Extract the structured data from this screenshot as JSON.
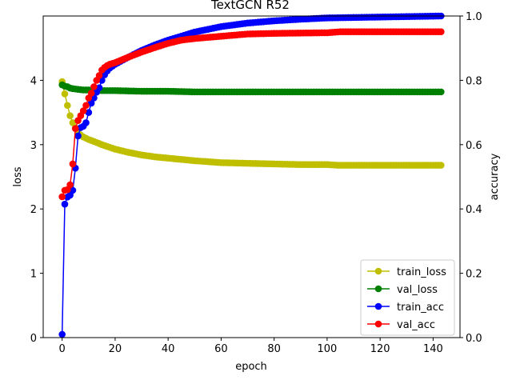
{
  "chart_data": {
    "type": "line",
    "title": "TextGCN R52",
    "xlabel": "epoch",
    "ylabel": "loss",
    "ylabel_right": "accuracy",
    "xlim": [
      -7.15,
      150.15
    ],
    "ylim": [
      0,
      5
    ],
    "ylim_right": [
      0,
      1
    ],
    "xticks": [
      "0",
      "20",
      "40",
      "60",
      "80",
      "100",
      "120",
      "140"
    ],
    "yticks_left": [
      "0",
      "1",
      "2",
      "3",
      "4"
    ],
    "yticks_right": [
      "0.0",
      "0.2",
      "0.4",
      "0.6",
      "0.8",
      "1.0"
    ],
    "legend_position": "lower right",
    "epochs": 144,
    "series": [
      {
        "name": "train_loss",
        "axis": "left",
        "color": "#bfbf00",
        "keyframes": [
          [
            0,
            3.98
          ],
          [
            1,
            3.79
          ],
          [
            2,
            3.61
          ],
          [
            3,
            3.45
          ],
          [
            4,
            3.34
          ],
          [
            5,
            3.26
          ],
          [
            6,
            3.19
          ],
          [
            7,
            3.15
          ],
          [
            8,
            3.12
          ],
          [
            10,
            3.08
          ],
          [
            12,
            3.05
          ],
          [
            15,
            3.0
          ],
          [
            20,
            2.93
          ],
          [
            25,
            2.88
          ],
          [
            30,
            2.84
          ],
          [
            35,
            2.81
          ],
          [
            40,
            2.79
          ],
          [
            50,
            2.75
          ],
          [
            60,
            2.72
          ],
          [
            70,
            2.71
          ],
          [
            80,
            2.7
          ],
          [
            90,
            2.69
          ],
          [
            100,
            2.69
          ],
          [
            104,
            2.68
          ],
          [
            143,
            2.68
          ]
        ]
      },
      {
        "name": "val_loss",
        "axis": "left",
        "color": "#008000",
        "keyframes": [
          [
            0,
            3.93
          ],
          [
            1,
            3.91
          ],
          [
            2,
            3.9
          ],
          [
            3,
            3.88
          ],
          [
            4,
            3.87
          ],
          [
            6,
            3.86
          ],
          [
            8,
            3.85
          ],
          [
            10,
            3.85
          ],
          [
            15,
            3.84
          ],
          [
            20,
            3.84
          ],
          [
            30,
            3.83
          ],
          [
            40,
            3.83
          ],
          [
            50,
            3.82
          ],
          [
            143,
            3.82
          ]
        ]
      },
      {
        "name": "train_acc",
        "axis": "right",
        "color": "#0000ff",
        "keyframes": [
          [
            0,
            0.01
          ],
          [
            1,
            0.415
          ],
          [
            2,
            0.437
          ],
          [
            3,
            0.443
          ],
          [
            4,
            0.458
          ],
          [
            5,
            0.527
          ],
          [
            6,
            0.627
          ],
          [
            7,
            0.653
          ],
          [
            8,
            0.657
          ],
          [
            9,
            0.668
          ],
          [
            10,
            0.7
          ],
          [
            11,
            0.729
          ],
          [
            12,
            0.745
          ],
          [
            13,
            0.763
          ],
          [
            14,
            0.777
          ],
          [
            15,
            0.8
          ],
          [
            16,
            0.817
          ],
          [
            17,
            0.829
          ],
          [
            18,
            0.838
          ],
          [
            20,
            0.85
          ],
          [
            25,
            0.872
          ],
          [
            30,
            0.893
          ],
          [
            35,
            0.91
          ],
          [
            40,
            0.925
          ],
          [
            50,
            0.95
          ],
          [
            60,
            0.967
          ],
          [
            70,
            0.978
          ],
          [
            80,
            0.985
          ],
          [
            90,
            0.99
          ],
          [
            100,
            0.994
          ],
          [
            143,
            1.0
          ]
        ]
      },
      {
        "name": "val_acc",
        "axis": "right",
        "color": "#ff0000",
        "keyframes": [
          [
            0,
            0.438
          ],
          [
            1,
            0.458
          ],
          [
            2,
            0.46
          ],
          [
            3,
            0.475
          ],
          [
            4,
            0.54
          ],
          [
            5,
            0.65
          ],
          [
            6,
            0.675
          ],
          [
            7,
            0.69
          ],
          [
            8,
            0.705
          ],
          [
            9,
            0.722
          ],
          [
            10,
            0.745
          ],
          [
            11,
            0.76
          ],
          [
            12,
            0.78
          ],
          [
            13,
            0.8
          ],
          [
            14,
            0.815
          ],
          [
            15,
            0.832
          ],
          [
            16,
            0.84
          ],
          [
            17,
            0.846
          ],
          [
            18,
            0.85
          ],
          [
            20,
            0.855
          ],
          [
            25,
            0.872
          ],
          [
            30,
            0.888
          ],
          [
            35,
            0.902
          ],
          [
            40,
            0.915
          ],
          [
            45,
            0.925
          ],
          [
            50,
            0.93
          ],
          [
            60,
            0.937
          ],
          [
            70,
            0.944
          ],
          [
            80,
            0.946
          ],
          [
            90,
            0.947
          ],
          [
            100,
            0.948
          ],
          [
            105,
            0.951
          ],
          [
            143,
            0.951
          ]
        ]
      }
    ]
  }
}
